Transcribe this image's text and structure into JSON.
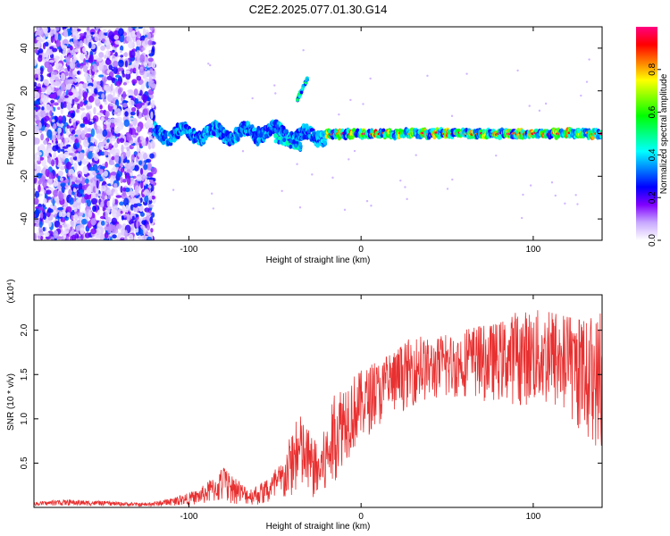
{
  "title": "C2E2.2025.077.01.30.G14",
  "chart_data": [
    {
      "type": "heatmap",
      "xlabel": "Height of straight line (km)",
      "ylabel": "Frequency (Hz)",
      "xlim": [
        -190,
        140
      ],
      "ylim": [
        -50,
        50
      ],
      "xticks": [
        -100,
        0,
        100
      ],
      "yticks": [
        -40,
        -20,
        0,
        20,
        40
      ],
      "colorbar": {
        "label": "Normalized spectral amplitude",
        "range": [
          0,
          1
        ],
        "ticks": [
          "0.0",
          "0.2",
          "0.4",
          "0.6",
          "0.8"
        ],
        "colors": [
          "#ffffff",
          "#c8a8ff",
          "#8000ff",
          "#0000ff",
          "#0080ff",
          "#00ffff",
          "#00ff80",
          "#00ff00",
          "#80ff00",
          "#ffff00",
          "#ff8000",
          "#ff0000",
          "#ff0080"
        ]
      },
      "features": [
        {
          "name": "broadband noise region",
          "x_range": [
            -190,
            -120
          ],
          "y_range": [
            -50,
            50
          ],
          "amplitude": 0.1
        },
        {
          "name": "signal band",
          "x_range": [
            -120,
            140
          ],
          "center_freq_hz": 0,
          "amplitude": 0.6
        },
        {
          "name": "high-frequency blob",
          "x_range": [
            -37,
            -31
          ],
          "freq_hz": 22,
          "amplitude": 0.4
        }
      ]
    },
    {
      "type": "line",
      "xlabel": "Height of straight line (km)",
      "ylabel": "SNR (10 * v/v)",
      "yscale_note": "(x10⁴)",
      "xlim": [
        -190,
        140
      ],
      "ylim": [
        0,
        2.4
      ],
      "xticks": [
        -100,
        0,
        100
      ],
      "yticks": [
        "0.5",
        "1.0",
        "1.5",
        "2.0"
      ],
      "color": "#e83030",
      "envelope": {
        "x": [
          -190,
          -170,
          -150,
          -125,
          -110,
          -95,
          -85,
          -80,
          -75,
          -65,
          -55,
          -45,
          -40,
          -35,
          -30,
          -25,
          -20,
          -15,
          -10,
          -5,
          0,
          10,
          20,
          30,
          40,
          50,
          60,
          70,
          80,
          90,
          100,
          110,
          120,
          130,
          140
        ],
        "low": [
          0.02,
          0.02,
          0.02,
          0.01,
          0.02,
          0.03,
          0.05,
          0.05,
          0.04,
          0.03,
          0.02,
          0.05,
          0.1,
          0.15,
          0.1,
          0.05,
          0.1,
          0.3,
          0.5,
          0.6,
          0.75,
          0.9,
          1.05,
          1.15,
          1.2,
          1.2,
          1.25,
          1.2,
          1.2,
          1.15,
          1.15,
          1.1,
          1.0,
          0.8,
          0.6
        ],
        "high": [
          0.06,
          0.09,
          0.07,
          0.05,
          0.1,
          0.2,
          0.35,
          0.45,
          0.35,
          0.22,
          0.3,
          0.55,
          0.9,
          1.05,
          0.85,
          0.7,
          0.95,
          1.3,
          1.45,
          1.5,
          1.55,
          1.65,
          1.75,
          1.95,
          1.9,
          1.95,
          2.0,
          2.05,
          2.1,
          2.2,
          2.25,
          2.2,
          2.15,
          2.1,
          2.2
        ]
      }
    }
  ]
}
